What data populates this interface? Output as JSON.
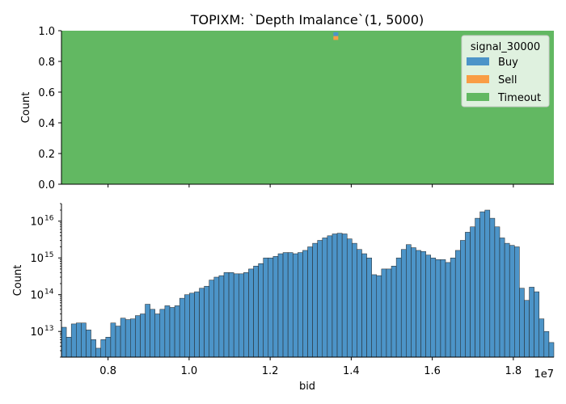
{
  "chart_data": [
    {
      "type": "area",
      "title": "TOPIXM: `Depth Imalance`(1, 5000)",
      "ylabel": "Count",
      "ylim": [
        0,
        1
      ],
      "yticks": [
        "0.0",
        "0.2",
        "0.4",
        "0.6",
        "0.8",
        "1.0"
      ],
      "xlim": [
        6.85,
        19.0
      ],
      "legend": {
        "title": "signal_30000",
        "placement": "top-right",
        "entries": [
          "Buy",
          "Sell",
          "Timeout"
        ]
      },
      "series": [
        {
          "name": "Buy",
          "color": "#4c94c8",
          "spikes": [
            {
              "x": 13.62,
              "low": 0.965,
              "high": 0.99
            }
          ]
        },
        {
          "name": "Sell",
          "color": "#f99d45",
          "spikes": [
            {
              "x": 13.62,
              "low": 0.94,
              "high": 0.965
            }
          ]
        },
        {
          "name": "Timeout",
          "color": "#62b862",
          "fraction": 1.0
        }
      ]
    },
    {
      "type": "bar",
      "xlabel": "bid",
      "ylabel": "Count",
      "yscale": "log",
      "ylim": [
        2000000000000.0,
        3e+16
      ],
      "yticks": [
        "10",
        "10",
        "10",
        "10"
      ],
      "ytick_exponents": [
        "13",
        "14",
        "15",
        "16"
      ],
      "xticks": [
        "0.8",
        "1.0",
        "1.2",
        "1.4",
        "1.6",
        "1.8"
      ],
      "xtick_values": [
        8,
        10,
        12,
        14,
        16,
        18
      ],
      "offset_text": "1e7",
      "offset_base": "1",
      "offset_exp": "e7",
      "bar_color": "#4c94c8",
      "bin_start": 6.85,
      "bin_width": 0.1215,
      "values": [
        13000000000000.0,
        7000000000000.0,
        16000000000000.0,
        17000000000000.0,
        17000000000000.0,
        11000000000000.0,
        6000000000000.0,
        3500000000000.0,
        6000000000000.0,
        7000000000000.0,
        17000000000000.0,
        14000000000000.0,
        23000000000000.0,
        21000000000000.0,
        22000000000000.0,
        27000000000000.0,
        30000000000000.0,
        55000000000000.0,
        40000000000000.0,
        30000000000000.0,
        40000000000000.0,
        50000000000000.0,
        45000000000000.0,
        50000000000000.0,
        80000000000000.0,
        100000000000000.0,
        110000000000000.0,
        120000000000000.0,
        150000000000000.0,
        170000000000000.0,
        250000000000000.0,
        300000000000000.0,
        330000000000000.0,
        400000000000000.0,
        400000000000000.0,
        370000000000000.0,
        370000000000000.0,
        400000000000000.0,
        500000000000000.0,
        600000000000000.0,
        700000000000000.0,
        1000000000000000.0,
        1000000000000000.0,
        1100000000000000.0,
        1300000000000000.0,
        1400000000000000.0,
        1400000000000000.0,
        1300000000000000.0,
        1400000000000000.0,
        1600000000000000.0,
        2000000000000000.0,
        2500000000000000.0,
        3000000000000000.0,
        3500000000000000.0,
        4000000000000000.0,
        4500000000000000.0,
        4700000000000000.0,
        4500000000000000.0,
        3300000000000000.0,
        2500000000000000.0,
        1700000000000000.0,
        1300000000000000.0,
        1000000000000000.0,
        350000000000000.0,
        330000000000000.0,
        500000000000000.0,
        500000000000000.0,
        600000000000000.0,
        1000000000000000.0,
        1700000000000000.0,
        2300000000000000.0,
        1900000000000000.0,
        1600000000000000.0,
        1500000000000000.0,
        1200000000000000.0,
        1000000000000000.0,
        900000000000000.0,
        900000000000000.0,
        750000000000000.0,
        1000000000000000.0,
        1600000000000000.0,
        3000000000000000.0,
        5000000000000000.0,
        7000000000000000.0,
        1.2e+16,
        1.8e+16,
        2e+16,
        1.2e+16,
        7000000000000000.0,
        3500000000000000.0,
        2500000000000000.0,
        2200000000000000.0,
        2000000000000000.0,
        150000000000000.0,
        70000000000000.0,
        160000000000000.0,
        120000000000000.0,
        22000000000000.0,
        10000000000000.0,
        5000000000000.0
      ]
    }
  ]
}
